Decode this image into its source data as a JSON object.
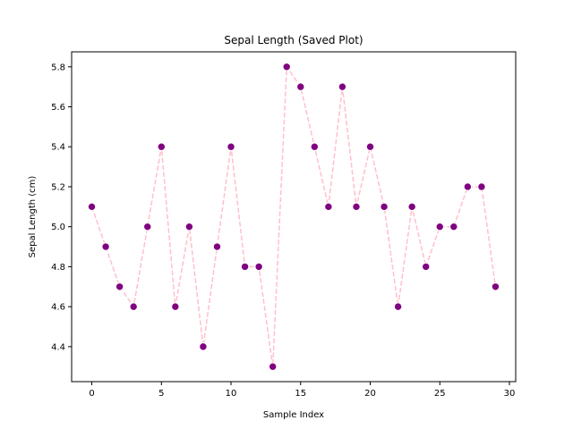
{
  "chart_data": {
    "type": "line",
    "title": "Sepal Length (Saved Plot)",
    "xlabel": "Sample Index",
    "ylabel": "Sepal Length (cm)",
    "x": [
      0,
      1,
      2,
      3,
      4,
      5,
      6,
      7,
      8,
      9,
      10,
      11,
      12,
      13,
      14,
      15,
      16,
      17,
      18,
      19,
      20,
      21,
      22,
      23,
      24,
      25,
      26,
      27,
      28,
      29
    ],
    "series": [
      {
        "values": [
          5.1,
          4.9,
          4.7,
          4.6,
          5.0,
          5.4,
          4.6,
          5.0,
          4.4,
          4.9,
          5.4,
          4.8,
          4.8,
          4.3,
          5.8,
          5.7,
          5.4,
          5.1,
          5.7,
          5.1,
          5.4,
          5.1,
          4.6,
          5.1,
          4.8,
          5.0,
          5.0,
          5.2,
          5.2,
          4.7
        ],
        "line_color": "#ffc0cb",
        "line_style": "dashed",
        "marker_color": "#800080",
        "marker_edge_color": "#ffffff"
      }
    ],
    "xlim": [
      -1.45,
      30.45
    ],
    "ylim": [
      4.225,
      5.875
    ],
    "xticks": [
      0,
      5,
      10,
      15,
      20,
      25,
      30
    ],
    "xtick_labels": [
      "0",
      "5",
      "10",
      "15",
      "20",
      "25",
      "30"
    ],
    "yticks": [
      4.4,
      4.6,
      4.8,
      5.0,
      5.2,
      5.4,
      5.6,
      5.8
    ],
    "ytick_labels": [
      "4.4",
      "4.6",
      "4.8",
      "5.0",
      "5.2",
      "5.4",
      "5.6",
      "5.8"
    ],
    "grid": false,
    "legend": "none"
  }
}
